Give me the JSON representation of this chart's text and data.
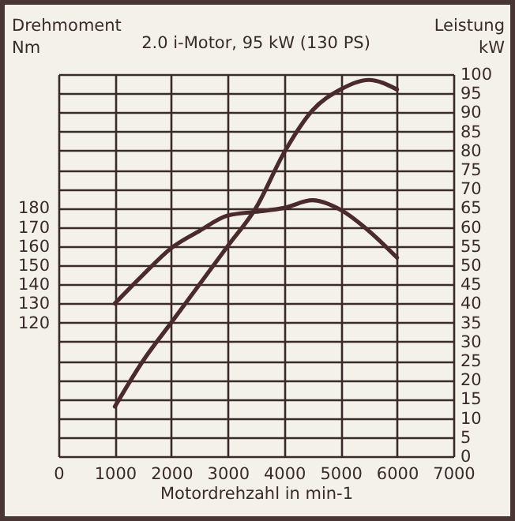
{
  "chart_data": {
    "type": "line",
    "title": "2.0 i-Motor, 95 kW (130 PS)",
    "xlabel": "Motordrehzahl in min-1",
    "ylabel": "Drehmoment\nNm",
    "y2label": "Leistung\nkW",
    "x": [
      1000,
      1500,
      2000,
      2500,
      3000,
      3500,
      4000,
      4500,
      5000,
      5500,
      6000
    ],
    "series": [
      {
        "color": "#4a2a2a",
        "axis": "y",
        "values": [
          130,
          145,
          159,
          168,
          176,
          178,
          180,
          184,
          179,
          168,
          154
        ]
      },
      {
        "color": "#4a2a2a",
        "axis": "y2",
        "values": [
          13,
          25,
          35,
          45,
          55,
          65,
          79.5,
          90.5,
          96,
          98.5,
          96
        ]
      }
    ],
    "xlim": [
      0,
      7000
    ],
    "xticks": [
      0,
      1000,
      2000,
      3000,
      4000,
      5000,
      6000,
      7000
    ],
    "ylim": [
      50,
      250
    ],
    "yticks": [
      120,
      130,
      140,
      150,
      160,
      170,
      180
    ],
    "y2lim": [
      0,
      100
    ],
    "y2ticks": [
      0,
      5,
      10,
      15,
      20,
      25,
      30,
      35,
      40,
      45,
      50,
      55,
      60,
      65,
      70,
      75,
      80,
      85,
      90,
      95,
      100
    ],
    "grid": true,
    "line_style": "solid",
    "marker": "none"
  }
}
